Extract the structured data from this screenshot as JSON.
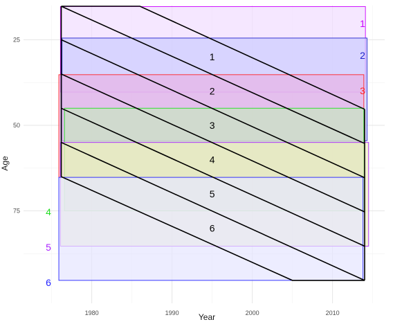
{
  "chart_data": {
    "type": "area",
    "xlabel": "Year",
    "ylabel": "Age",
    "xlim": [
      1971.5,
      2016.5
    ],
    "ylim": [
      15,
      102
    ],
    "y_reversed": true,
    "grid": true,
    "x_ticks": [
      1980,
      1990,
      2000,
      2010
    ],
    "y_ticks": [
      25,
      50,
      75
    ],
    "x_tick_labels": [
      "1980",
      "1990",
      "2000",
      "2010"
    ],
    "y_tick_labels": [
      "25",
      "50",
      "75"
    ],
    "bands": [
      {
        "label": "1",
        "x0": 1976.1,
        "x1": 2014.1,
        "age0": 15.3,
        "age1": 40.3,
        "color": "#cc00ff",
        "fill": "#f1ddff"
      },
      {
        "label": "2",
        "x0": 1976.3,
        "x1": 2014.3,
        "age0": 24.5,
        "age1": 54.5,
        "color": "#2222cc",
        "fill": "#ccccff"
      },
      {
        "label": "3",
        "x0": 1975.9,
        "x1": 2013.9,
        "age0": 35.2,
        "age1": 65.2,
        "color": "#ff2222",
        "fill": "#e8b3e6"
      },
      {
        "label": "4",
        "x0": 1976.6,
        "x1": 2013.9,
        "age0": 45.0,
        "age1": 75.0,
        "color": "#22dd22",
        "fill": "#c8e6c0"
      },
      {
        "label": "5",
        "x0": 1976.1,
        "x1": 2014.5,
        "age0": 55.0,
        "age1": 85.3,
        "color": "#aa22ff",
        "fill": "#eeeec0"
      },
      {
        "label": "6",
        "x0": 1975.9,
        "x1": 2013.8,
        "age0": 65.2,
        "age1": 95.3,
        "color": "#2222ff",
        "fill": "#e6e6ff"
      }
    ],
    "cohorts": [
      {
        "label": "1",
        "label_x": 1995,
        "label_age": 30
      },
      {
        "label": "2",
        "label_x": 1995,
        "label_age": 40
      },
      {
        "label": "3",
        "label_x": 1995,
        "label_age": 50
      },
      {
        "label": "4",
        "label_x": 1995,
        "label_age": 60
      },
      {
        "label": "5",
        "label_x": 1995,
        "label_age": 70
      },
      {
        "label": "6",
        "label_x": 1995,
        "label_age": 80
      }
    ],
    "cohort_lines": [
      [
        [
          1976.2,
          15.2
        ],
        [
          1986.0,
          15.2
        ],
        [
          2014.0,
          45.3
        ]
      ],
      [
        [
          1976.2,
          15.2
        ],
        [
          2014.0,
          55.3
        ]
      ],
      [
        [
          1976.2,
          25.0
        ],
        [
          2014.0,
          65.3
        ]
      ],
      [
        [
          1976.2,
          35.0
        ],
        [
          2014.0,
          75.3
        ]
      ],
      [
        [
          1976.2,
          45.0
        ],
        [
          2014.0,
          85.3
        ]
      ],
      [
        [
          1976.2,
          55.0
        ],
        [
          2014.0,
          95.3
        ]
      ],
      [
        [
          1976.2,
          65.0
        ],
        [
          2005.0,
          95.3
        ],
        [
          2014.0,
          95.3
        ]
      ]
    ],
    "outline": [
      [
        1976.2,
        15.2
      ],
      [
        1976.2,
        65.0
      ],
      [
        2014.0,
        95.3
      ],
      [
        2014.0,
        45.3
      ]
    ]
  }
}
